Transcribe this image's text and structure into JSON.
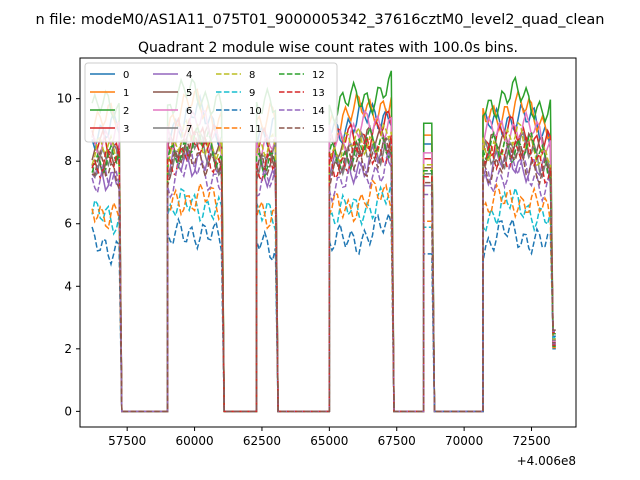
{
  "figure": {
    "suptitle": "n file: modeM0/AS1A11_075T01_9000005342_37616cztM0_level2_quad_clean",
    "title": "Quadrant 2 module wise count rates with 100.0s bins.",
    "offset_label": "+4.006e8"
  },
  "chart_data": {
    "type": "line",
    "title": "Quadrant 2 module wise count rates with 100.0s bins.",
    "xlabel": "",
    "ylabel": "",
    "x_offset": 400600000,
    "xlim": [
      55750,
      74150
    ],
    "ylim": [
      -0.5,
      11.3
    ],
    "xticks": [
      57500,
      60000,
      62500,
      65000,
      67500,
      70000,
      72500
    ],
    "xtick_labels": [
      "57500",
      "60000",
      "62500",
      "65000",
      "67500",
      "70000",
      "72500"
    ],
    "yticks": [
      0,
      2,
      4,
      6,
      8,
      10
    ],
    "ytick_labels": [
      "0",
      "2",
      "4",
      "6",
      "8",
      "10"
    ],
    "grid": false,
    "legend_position": "top-left",
    "legend_columns": 4,
    "segments": [
      {
        "on_start": 56200,
        "on_end": 57200,
        "off_end": 59000
      },
      {
        "on_start": 59000,
        "on_end": 61000,
        "off_end": 62300
      },
      {
        "on_start": 62300,
        "on_end": 63000,
        "off_end": 65000
      },
      {
        "on_start": 65000,
        "on_end": 67300,
        "off_end": 68500
      },
      {
        "on_start": 68500,
        "on_end": 68800,
        "off_end": 70700
      },
      {
        "on_start": 70700,
        "on_end": 73400,
        "off_end": 73400
      }
    ],
    "series": [
      {
        "name": "0",
        "color": "#1f77b4",
        "dash": "solid",
        "level": 9.0
      },
      {
        "name": "1",
        "color": "#ff7f0e",
        "dash": "solid",
        "level": 9.3
      },
      {
        "name": "2",
        "color": "#2ca02c",
        "dash": "solid",
        "level": 9.7
      },
      {
        "name": "3",
        "color": "#d62728",
        "dash": "solid",
        "level": 8.5
      },
      {
        "name": "4",
        "color": "#9467bd",
        "dash": "solid",
        "level": 7.6
      },
      {
        "name": "5",
        "color": "#8c564b",
        "dash": "solid",
        "level": 8.2
      },
      {
        "name": "6",
        "color": "#e377c2",
        "dash": "solid",
        "level": 8.7
      },
      {
        "name": "7",
        "color": "#7f7f7f",
        "dash": "solid",
        "level": 8.0
      },
      {
        "name": "8",
        "color": "#bcbd22",
        "dash": "dashed",
        "level": 8.3
      },
      {
        "name": "9",
        "color": "#17becf",
        "dash": "dashed",
        "level": 6.2
      },
      {
        "name": "10",
        "color": "#1f77b4",
        "dash": "dashed",
        "level": 5.3
      },
      {
        "name": "11",
        "color": "#ff7f0e",
        "dash": "dashed",
        "level": 6.4
      },
      {
        "name": "12",
        "color": "#2ca02c",
        "dash": "dashed",
        "level": 8.1
      },
      {
        "name": "13",
        "color": "#d62728",
        "dash": "dashed",
        "level": 7.9
      },
      {
        "name": "14",
        "color": "#9467bd",
        "dash": "dashed",
        "level": 7.3
      },
      {
        "name": "15",
        "color": "#8c564b",
        "dash": "dashed",
        "level": 7.7
      }
    ]
  }
}
